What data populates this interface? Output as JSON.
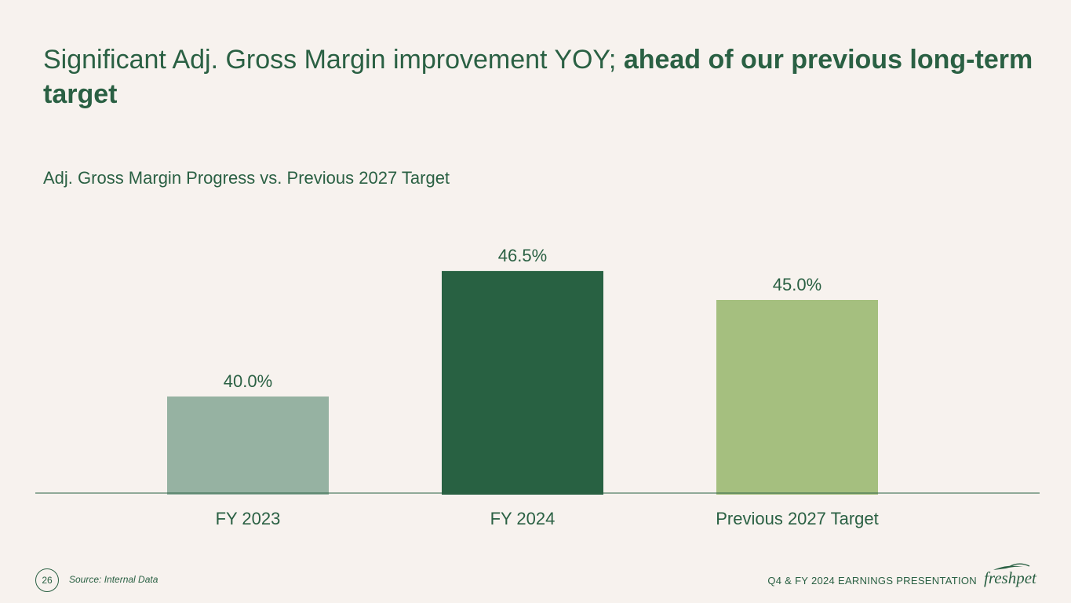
{
  "slide": {
    "title_regular": "Significant Adj. Gross Margin improvement YOY; ",
    "title_bold": "ahead of our previous long-term target",
    "subtitle": "Adj. Gross Margin Progress vs. Previous 2027 Target",
    "page_number": "26",
    "source": "Source: Internal Data",
    "presentation_name": "Q4 & FY 2024 EARNINGS PRESENTATION",
    "logo_text": "freshpet"
  },
  "colors": {
    "title": "#2a6043",
    "bar_fy2023": "#96b2a2",
    "bar_fy2024": "#286142",
    "bar_target": "#a5bf7f",
    "axis": "#2a6043"
  },
  "chart_data": {
    "type": "bar",
    "title": "Adj. Gross Margin Progress vs. Previous 2027 Target",
    "categories": [
      "FY 2023",
      "FY 2024",
      "Previous 2027 Target"
    ],
    "values": [
      40.0,
      46.5,
      45.0
    ],
    "labels": [
      "40.0%",
      "46.5%",
      "45.0%"
    ],
    "unit": "%",
    "xlabel": "",
    "ylabel": "",
    "ylim": [
      35,
      47
    ],
    "grid": false,
    "legend": "none"
  }
}
